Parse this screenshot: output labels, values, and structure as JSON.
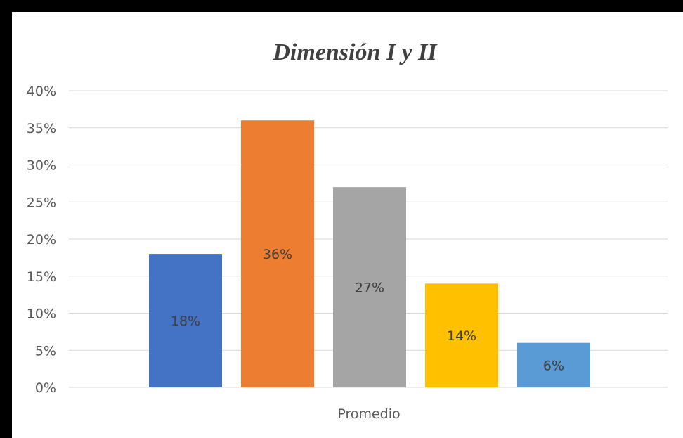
{
  "chart_data": {
    "type": "bar",
    "title": "Dimensión I y II",
    "xlabel": "",
    "ylabel": "",
    "categories": [
      "Promedio"
    ],
    "series": [
      {
        "value": 18,
        "label": "18%",
        "color": "#4472C4"
      },
      {
        "value": 36,
        "label": "36%",
        "color": "#ED7D31"
      },
      {
        "value": 27,
        "label": "27%",
        "color": "#A5A5A5"
      },
      {
        "value": 14,
        "label": "14%",
        "color": "#FFC000"
      },
      {
        "value": 6,
        "label": "6%",
        "color": "#5B9BD5"
      }
    ],
    "ylim": [
      0,
      40
    ],
    "y_ticks": [
      "0%",
      "5%",
      "10%",
      "15%",
      "20%",
      "25%",
      "30%",
      "35%",
      "40%"
    ],
    "grid": true,
    "legend": "none"
  }
}
